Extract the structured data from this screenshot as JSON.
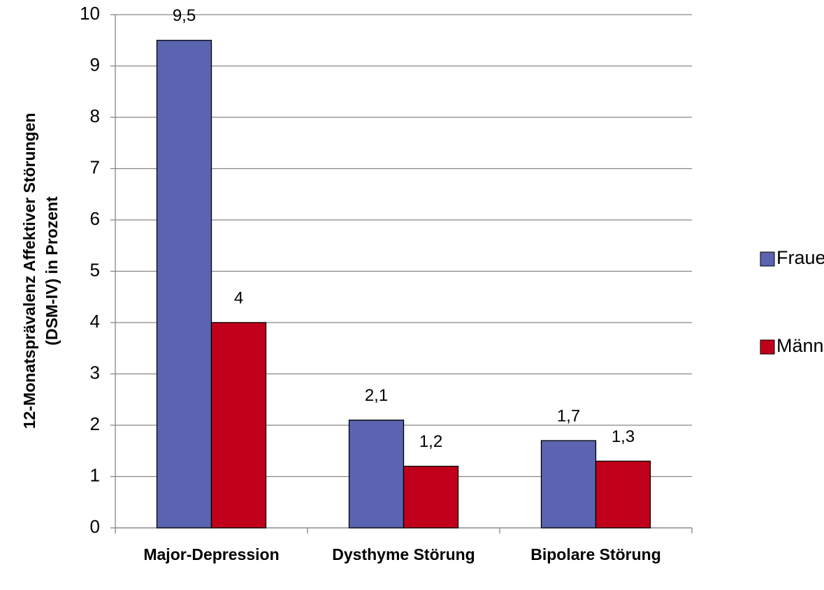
{
  "chart_data": {
    "type": "bar",
    "ylabel": [
      "12-Monatsprävalenz Affektiver Störungen",
      "(DSM-IV) in Prozent"
    ],
    "categories": [
      "Major-Depression",
      "Dysthyme Störung",
      "Bipolare Störung"
    ],
    "series": [
      {
        "name": "Frauen",
        "color": "#5a64b0",
        "values": [
          9.5,
          2.1,
          1.7
        ],
        "value_labels": [
          "9,5",
          "2,1",
          "1,7"
        ]
      },
      {
        "name": "Männer",
        "color": "#c0001a",
        "values": [
          4,
          1.2,
          1.3
        ],
        "value_labels": [
          "4",
          "1,2",
          "1,3"
        ]
      }
    ],
    "ylim": [
      0,
      10
    ],
    "yticks": [
      0,
      1,
      2,
      3,
      4,
      5,
      6,
      7,
      8,
      9,
      10
    ],
    "grid": true,
    "legend": "right"
  }
}
